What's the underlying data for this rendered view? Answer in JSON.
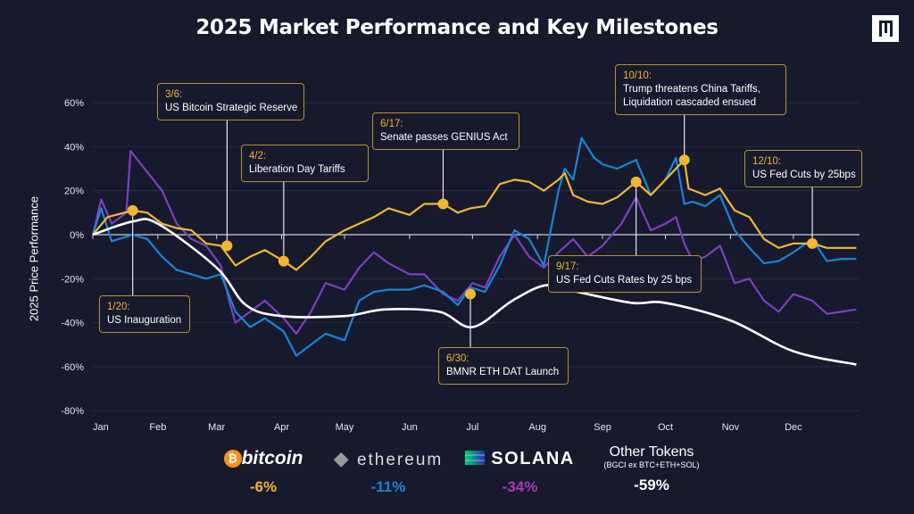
{
  "title": "2025 Market Performance and Key Milestones",
  "chart_data": {
    "type": "line",
    "title": "2025 Market Performance and Key Milestones",
    "ylabel": "2025 Price Performance",
    "xlabel": "",
    "ylim": [
      -80,
      60
    ],
    "yticks": [
      "60%",
      "40%",
      "20%",
      "0%",
      "-20%",
      "-40%",
      "-60%",
      "-80%"
    ],
    "ytick_values": [
      60,
      40,
      20,
      0,
      -20,
      -40,
      -60,
      -80
    ],
    "xticks": [
      "Jan",
      "Feb",
      "Mar",
      "Apr",
      "May",
      "Jun",
      "Jul",
      "Aug",
      "Sep",
      "Oct",
      "Nov",
      "Dec"
    ],
    "grid": true,
    "series": [
      {
        "name": "bitcoin",
        "color": "#f0b733",
        "points": [
          [
            "01-01",
            0
          ],
          [
            "01-08",
            8
          ],
          [
            "01-20",
            11
          ],
          [
            "01-27",
            10
          ],
          [
            "02-03",
            5
          ],
          [
            "02-10",
            3
          ],
          [
            "02-17",
            2
          ],
          [
            "02-24",
            -4
          ],
          [
            "03-03",
            -5
          ],
          [
            "03-10",
            -14
          ],
          [
            "03-17",
            -10
          ],
          [
            "03-24",
            -7
          ],
          [
            "04-02",
            -12
          ],
          [
            "04-08",
            -16
          ],
          [
            "04-15",
            -10
          ],
          [
            "04-22",
            -3
          ],
          [
            "05-01",
            2
          ],
          [
            "05-08",
            5
          ],
          [
            "05-15",
            8
          ],
          [
            "05-22",
            12
          ],
          [
            "06-01",
            9
          ],
          [
            "06-08",
            14
          ],
          [
            "06-17",
            14
          ],
          [
            "06-24",
            10
          ],
          [
            "06-30",
            12
          ],
          [
            "07-07",
            13
          ],
          [
            "07-14",
            23
          ],
          [
            "07-21",
            25
          ],
          [
            "07-28",
            24
          ],
          [
            "08-04",
            20
          ],
          [
            "08-11",
            25
          ],
          [
            "08-14",
            28
          ],
          [
            "08-18",
            18
          ],
          [
            "08-25",
            15
          ],
          [
            "09-01",
            14
          ],
          [
            "09-08",
            17
          ],
          [
            "09-17",
            24
          ],
          [
            "09-24",
            18
          ],
          [
            "10-01",
            25
          ],
          [
            "10-06",
            30
          ],
          [
            "10-10",
            34
          ],
          [
            "10-12",
            21
          ],
          [
            "10-20",
            18
          ],
          [
            "10-27",
            21
          ],
          [
            "11-03",
            11
          ],
          [
            "11-10",
            8
          ],
          [
            "11-17",
            -2
          ],
          [
            "11-24",
            -6
          ],
          [
            "12-01",
            -4
          ],
          [
            "12-10",
            -4
          ],
          [
            "12-17",
            -6
          ],
          [
            "12-24",
            -6
          ],
          [
            "12-31",
            -6
          ]
        ]
      },
      {
        "name": "ethereum",
        "color": "#1a84d8",
        "points": [
          [
            "01-01",
            0
          ],
          [
            "01-05",
            12
          ],
          [
            "01-10",
            -3
          ],
          [
            "01-20",
            0
          ],
          [
            "01-27",
            -2
          ],
          [
            "02-03",
            -10
          ],
          [
            "02-10",
            -16
          ],
          [
            "02-24",
            -20
          ],
          [
            "03-03",
            -18
          ],
          [
            "03-10",
            -35
          ],
          [
            "03-17",
            -42
          ],
          [
            "03-24",
            -38
          ],
          [
            "04-02",
            -44
          ],
          [
            "04-08",
            -55
          ],
          [
            "04-15",
            -50
          ],
          [
            "04-22",
            -45
          ],
          [
            "05-01",
            -48
          ],
          [
            "05-08",
            -30
          ],
          [
            "05-15",
            -26
          ],
          [
            "05-22",
            -25
          ],
          [
            "06-01",
            -25
          ],
          [
            "06-08",
            -23
          ],
          [
            "06-17",
            -26
          ],
          [
            "06-24",
            -32
          ],
          [
            "06-30",
            -24
          ],
          [
            "07-07",
            -26
          ],
          [
            "07-14",
            -14
          ],
          [
            "07-21",
            2
          ],
          [
            "07-28",
            -2
          ],
          [
            "08-04",
            -14
          ],
          [
            "08-11",
            20
          ],
          [
            "08-14",
            30
          ],
          [
            "08-18",
            25
          ],
          [
            "08-22",
            44
          ],
          [
            "08-28",
            35
          ],
          [
            "09-01",
            32
          ],
          [
            "09-08",
            30
          ],
          [
            "09-17",
            34
          ],
          [
            "09-24",
            18
          ],
          [
            "10-01",
            25
          ],
          [
            "10-06",
            35
          ],
          [
            "10-10",
            14
          ],
          [
            "10-14",
            15
          ],
          [
            "10-20",
            13
          ],
          [
            "10-27",
            18
          ],
          [
            "11-03",
            2
          ],
          [
            "11-10",
            -6
          ],
          [
            "11-17",
            -13
          ],
          [
            "11-24",
            -12
          ],
          [
            "12-01",
            -8
          ],
          [
            "12-10",
            -2
          ],
          [
            "12-17",
            -12
          ],
          [
            "12-24",
            -11
          ],
          [
            "12-31",
            -11
          ]
        ]
      },
      {
        "name": "SOLANA",
        "color": "#7b3fc4",
        "points": [
          [
            "01-01",
            0
          ],
          [
            "01-05",
            16
          ],
          [
            "01-10",
            5
          ],
          [
            "01-17",
            10
          ],
          [
            "01-19",
            38
          ],
          [
            "01-24",
            32
          ],
          [
            "02-03",
            20
          ],
          [
            "02-10",
            5
          ],
          [
            "02-17",
            -2
          ],
          [
            "02-24",
            -5
          ],
          [
            "03-03",
            -14
          ],
          [
            "03-07",
            -30
          ],
          [
            "03-10",
            -40
          ],
          [
            "03-17",
            -35
          ],
          [
            "03-24",
            -30
          ],
          [
            "04-02",
            -38
          ],
          [
            "04-08",
            -45
          ],
          [
            "04-15",
            -35
          ],
          [
            "04-22",
            -22
          ],
          [
            "05-01",
            -25
          ],
          [
            "05-08",
            -15
          ],
          [
            "05-15",
            -8
          ],
          [
            "05-22",
            -13
          ],
          [
            "06-01",
            -18
          ],
          [
            "06-08",
            -18
          ],
          [
            "06-17",
            -27
          ],
          [
            "06-24",
            -30
          ],
          [
            "07-01",
            -22
          ],
          [
            "07-07",
            -24
          ],
          [
            "07-14",
            -10
          ],
          [
            "07-21",
            0
          ],
          [
            "07-28",
            -10
          ],
          [
            "08-04",
            -15
          ],
          [
            "08-11",
            -8
          ],
          [
            "08-18",
            -2
          ],
          [
            "08-25",
            -10
          ],
          [
            "09-01",
            -5
          ],
          [
            "09-10",
            5
          ],
          [
            "09-17",
            17
          ],
          [
            "09-24",
            2
          ],
          [
            "10-01",
            5
          ],
          [
            "10-06",
            8
          ],
          [
            "10-10",
            -4
          ],
          [
            "10-14",
            -12
          ],
          [
            "10-20",
            -10
          ],
          [
            "10-27",
            -5
          ],
          [
            "11-03",
            -22
          ],
          [
            "11-10",
            -20
          ],
          [
            "11-17",
            -30
          ],
          [
            "11-24",
            -35
          ],
          [
            "12-01",
            -27
          ],
          [
            "12-10",
            -30
          ],
          [
            "12-17",
            -36
          ],
          [
            "12-24",
            -35
          ],
          [
            "12-31",
            -34
          ]
        ]
      },
      {
        "name": "Other Tokens",
        "color": "#ffffff",
        "smooth": true,
        "points": [
          [
            "01-01",
            0
          ],
          [
            "01-20",
            6
          ],
          [
            "02-01",
            5
          ],
          [
            "03-01",
            -15
          ],
          [
            "03-15",
            -32
          ],
          [
            "04-01",
            -37
          ],
          [
            "05-01",
            -37
          ],
          [
            "05-20",
            -34
          ],
          [
            "06-15",
            -35
          ],
          [
            "07-01",
            -42
          ],
          [
            "07-20",
            -30
          ],
          [
            "08-05",
            -23
          ],
          [
            "08-20",
            -26
          ],
          [
            "09-15",
            -31
          ],
          [
            "10-01",
            -31
          ],
          [
            "11-01",
            -39
          ],
          [
            "12-01",
            -53
          ],
          [
            "12-31",
            -59
          ]
        ]
      }
    ],
    "annotations": [
      {
        "date_label": "1/20:",
        "text": "US Inauguration",
        "date": "01-20",
        "value": 11
      },
      {
        "date_label": "3/6:",
        "text": "US Bitcoin Strategic Reserve",
        "date": "03-06",
        "value": -5
      },
      {
        "date_label": "4/2:",
        "text": "Liberation Day Tariffs",
        "date": "04-02",
        "value": -12
      },
      {
        "date_label": "6/17:",
        "text": "Senate passes GENIUS Act",
        "date": "06-17",
        "value": 14
      },
      {
        "date_label": "6/30:",
        "text": "BMNR ETH DAT Launch",
        "date": "06-30",
        "value": -27
      },
      {
        "date_label": "9/17:",
        "text": "US Fed Cuts Rates by 25 bps",
        "date": "09-17",
        "value": 24
      },
      {
        "date_label": "10/10:",
        "text": "Trump threatens China Tariffs,",
        "text2": "Liquidation cascaded ensued",
        "date": "10-10",
        "value": 34
      },
      {
        "date_label": "12/10:",
        "text": "US Fed Cuts by 25bps",
        "date": "12-10",
        "value": -4
      }
    ],
    "marker_color": "#f0b733"
  },
  "legend": [
    {
      "name": "bitcoin",
      "pct": "-6%",
      "color": "#f0b733"
    },
    {
      "name": "ethereum",
      "pct": "-11%",
      "color": "#1a84d8"
    },
    {
      "name": "SOLANA",
      "pct": "-34%",
      "color": "#a53bb5"
    },
    {
      "name": "Other Tokens",
      "sub": "(BGCI ex BTC+ETH+SOL)",
      "pct": "-59%",
      "color": "#ffffff"
    }
  ]
}
